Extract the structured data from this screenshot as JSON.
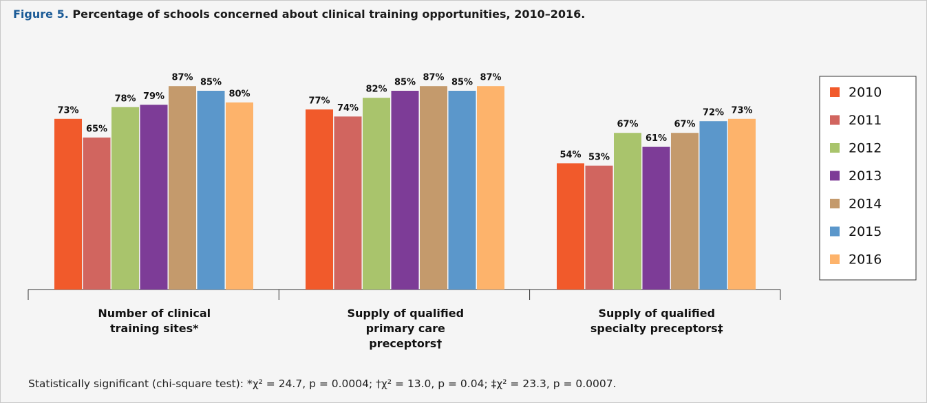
{
  "chart_data": {
    "type": "bar",
    "figure_label": "Figure 5.",
    "title": "Percentage of schools concerned about clinical training opportunities, 2010–2016.",
    "categories": [
      "Number of clinical training sites*",
      "Supply of qualified primary care preceptors†",
      "Supply of qualified specialty preceptors‡"
    ],
    "series": [
      {
        "name": "2010",
        "color": "#f15a2b",
        "values": [
          73,
          77,
          54
        ],
        "value_labels": [
          "73%",
          "77%",
          "54%"
        ]
      },
      {
        "name": "2011",
        "color": "#d1655f",
        "values": [
          65,
          74,
          53
        ],
        "value_labels": [
          "65%",
          "74%",
          "53%"
        ]
      },
      {
        "name": "2012",
        "color": "#a9c46c",
        "values": [
          78,
          82,
          67
        ],
        "value_labels": [
          "78%",
          "82%",
          "67%"
        ]
      },
      {
        "name": "2013",
        "color": "#7d3c97",
        "values": [
          79,
          85,
          61
        ],
        "value_labels": [
          "79%",
          "85%",
          "61%"
        ]
      },
      {
        "name": "2014",
        "color": "#c49a6c",
        "values": [
          87,
          87,
          67
        ],
        "value_labels": [
          "87%",
          "87%",
          "67%"
        ]
      },
      {
        "name": "2015",
        "color": "#5b97cb",
        "values": [
          85,
          85,
          72
        ],
        "value_labels": [
          "85%",
          "85%",
          "72%"
        ]
      },
      {
        "name": "2016",
        "color": "#fdb36b",
        "values": [
          80,
          87,
          73
        ],
        "value_labels": [
          "80%",
          "87%",
          "73%"
        ]
      }
    ],
    "footnote": "Statistically significant (chi-square test): *χ² = 24.7, p = 0.0004; †χ² = 13.0, p = 0.04; ‡χ² = 23.3, p = 0.0007."
  }
}
